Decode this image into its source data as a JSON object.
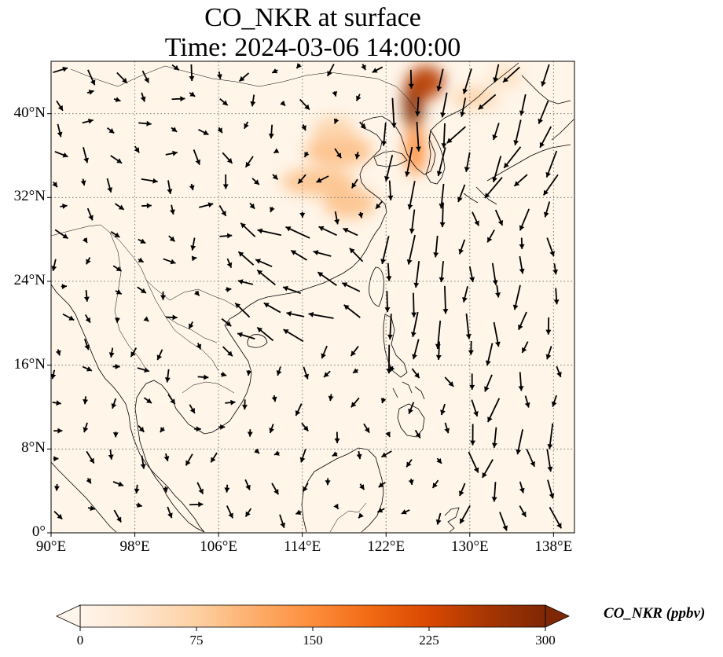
{
  "title": "CO_NKR at surface",
  "subtitle": "Time: 2024-03-06 14:00:00",
  "map": {
    "extent": {
      "lon_min": 90,
      "lon_max": 140,
      "lat_min": 0,
      "lat_max": 45
    },
    "x_ticks": [
      {
        "lon": 90,
        "label": "90°E"
      },
      {
        "lon": 98,
        "label": "98°E"
      },
      {
        "lon": 106,
        "label": "106°E"
      },
      {
        "lon": 114,
        "label": "114°E"
      },
      {
        "lon": 122,
        "label": "122°E"
      },
      {
        "lon": 130,
        "label": "130°E"
      },
      {
        "lon": 138,
        "label": "138°E"
      }
    ],
    "y_ticks": [
      {
        "lat": 0,
        "label": "0°"
      },
      {
        "lat": 8,
        "label": "8°N"
      },
      {
        "lat": 16,
        "label": "16°N"
      },
      {
        "lat": 24,
        "label": "24°N"
      },
      {
        "lat": 32,
        "label": "32°N"
      },
      {
        "lat": 40,
        "label": "40°N"
      }
    ],
    "gridlines": "dotted",
    "background_color": "#fff5e9",
    "plumes": [
      {
        "lon": 124.6,
        "lat": 41.0,
        "rlon": 1.0,
        "rlat": 2.6,
        "ppbv": 300
      },
      {
        "lon": 125.8,
        "lat": 43.0,
        "rlon": 1.8,
        "rlat": 1.6,
        "ppbv": 250
      },
      {
        "lon": 124.8,
        "lat": 36.5,
        "rlon": 1.0,
        "rlat": 2.4,
        "ppbv": 150
      },
      {
        "lon": 117.5,
        "lat": 36.5,
        "rlon": 3.2,
        "rlat": 1.5,
        "ppbv": 95
      },
      {
        "lon": 115.5,
        "lat": 33.5,
        "rlon": 3.5,
        "rlat": 1.3,
        "ppbv": 90
      },
      {
        "lon": 118.5,
        "lat": 31.5,
        "rlon": 2.5,
        "rlat": 1.5,
        "ppbv": 90
      },
      {
        "lon": 117.0,
        "lat": 38.5,
        "rlon": 2.0,
        "rlat": 1.2,
        "ppbv": 70
      },
      {
        "lon": 130.5,
        "lat": 41.5,
        "rlon": 2.2,
        "rlat": 1.0,
        "ppbv": 70
      },
      {
        "lon": 133.5,
        "lat": 43.5,
        "rlon": 1.5,
        "rlat": 1.0,
        "ppbv": 50
      }
    ]
  },
  "colorbar": {
    "label": "CO_NKR (ppbv)",
    "min": 0,
    "max": 300,
    "ticks": [
      "0",
      "75",
      "150",
      "225",
      "300"
    ],
    "colors": [
      "#fff5eb",
      "#fee6ce",
      "#fdd0a2",
      "#fdae6b",
      "#fd8d3c",
      "#f16913",
      "#d94801",
      "#a63603",
      "#7f2704"
    ]
  }
}
